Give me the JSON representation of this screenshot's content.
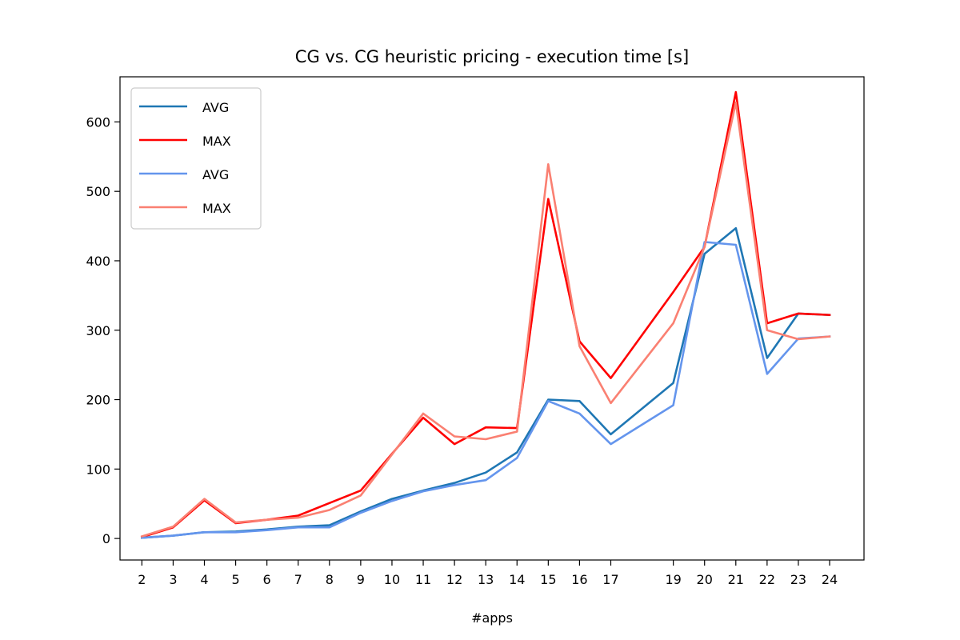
{
  "chart_data": {
    "type": "line",
    "title": "CG vs. CG heuristic pricing - execution time [s]",
    "xlabel": "#apps",
    "ylabel": "",
    "x": [
      2,
      3,
      4,
      5,
      6,
      7,
      8,
      9,
      10,
      11,
      12,
      13,
      14,
      15,
      16,
      17,
      19,
      20,
      21,
      22,
      23,
      24
    ],
    "xlim": [
      1.3,
      25.1
    ],
    "ylim": [
      -31,
      665
    ],
    "xticks": [
      2,
      3,
      4,
      5,
      6,
      7,
      8,
      9,
      10,
      11,
      12,
      13,
      14,
      15,
      16,
      17,
      19,
      20,
      21,
      22,
      23,
      24
    ],
    "yticks": [
      0,
      100,
      200,
      300,
      400,
      500,
      600
    ],
    "grid": false,
    "legend_position": "top-left",
    "series": [
      {
        "name": "AVG",
        "color": "#1f77b4",
        "values": [
          1,
          4,
          9,
          10,
          13,
          17,
          19,
          39,
          57,
          69,
          80,
          95,
          124,
          200,
          198,
          150,
          224,
          410,
          447,
          260,
          324,
          322
        ]
      },
      {
        "name": "MAX",
        "color": "#ff0000",
        "values": [
          2,
          16,
          55,
          22,
          27,
          33,
          51,
          69,
          122,
          174,
          136,
          160,
          159,
          489,
          284,
          231,
          355,
          420,
          643,
          310,
          324,
          322
        ]
      },
      {
        "name": "AVG",
        "color": "#6495ed",
        "values": [
          1,
          4,
          9,
          9,
          12,
          16,
          16,
          37,
          54,
          68,
          77,
          84,
          116,
          198,
          180,
          136,
          192,
          427,
          423,
          237,
          288,
          291
        ]
      },
      {
        "name": "MAX",
        "color": "#fa8072",
        "values": [
          3,
          17,
          57,
          23,
          27,
          30,
          41,
          62,
          121,
          180,
          147,
          143,
          154,
          539,
          277,
          195,
          310,
          420,
          628,
          300,
          287,
          291
        ]
      }
    ]
  }
}
